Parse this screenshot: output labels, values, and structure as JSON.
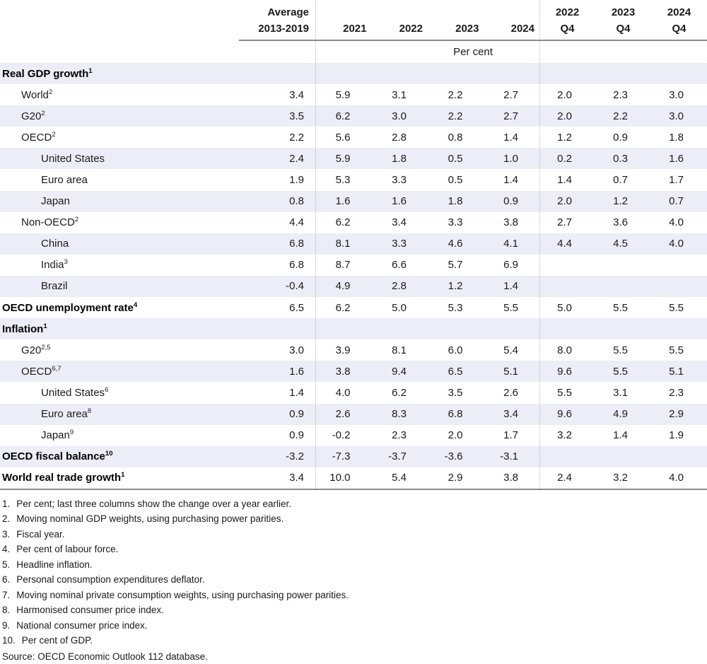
{
  "table": {
    "header": {
      "avg": {
        "line1": "Average",
        "line2": "2013-2019"
      },
      "years": [
        "2021",
        "2022",
        "2023",
        "2024"
      ],
      "quarters": [
        {
          "year": "2022",
          "q": "Q4"
        },
        {
          "year": "2023",
          "q": "Q4"
        },
        {
          "year": "2024",
          "q": "Q4"
        }
      ],
      "unit_label": "Per cent"
    },
    "rows": [
      {
        "label": "Real GDP growth",
        "marker": "1",
        "indent": 0,
        "values": [
          "",
          "",
          "",
          "",
          "",
          "",
          "",
          ""
        ]
      },
      {
        "label": "World",
        "marker": "2",
        "indent": 1,
        "values": [
          "3.4",
          "5.9",
          "3.1",
          "2.2",
          "2.7",
          "2.0",
          "2.3",
          "3.0"
        ]
      },
      {
        "label": "G20",
        "marker": "2",
        "indent": 1,
        "values": [
          "3.5",
          "6.2",
          "3.0",
          "2.2",
          "2.7",
          "2.0",
          "2.2",
          "3.0"
        ]
      },
      {
        "label": "OECD",
        "marker": "2",
        "indent": 1,
        "values": [
          "2.2",
          "5.6",
          "2.8",
          "0.8",
          "1.4",
          "1.2",
          "0.9",
          "1.8"
        ]
      },
      {
        "label": "United States",
        "marker": "",
        "indent": 2,
        "values": [
          "2.4",
          "5.9",
          "1.8",
          "0.5",
          "1.0",
          "0.2",
          "0.3",
          "1.6"
        ]
      },
      {
        "label": "Euro area",
        "marker": "",
        "indent": 2,
        "values": [
          "1.9",
          "5.3",
          "3.3",
          "0.5",
          "1.4",
          "1.4",
          "0.7",
          "1.7"
        ]
      },
      {
        "label": "Japan",
        "marker": "",
        "indent": 2,
        "values": [
          "0.8",
          "1.6",
          "1.6",
          "1.8",
          "0.9",
          "2.0",
          "1.2",
          "0.7"
        ]
      },
      {
        "label": "Non-OECD",
        "marker": "2",
        "indent": 1,
        "values": [
          "4.4",
          "6.2",
          "3.4",
          "3.3",
          "3.8",
          "2.7",
          "3.6",
          "4.0"
        ]
      },
      {
        "label": "China",
        "marker": "",
        "indent": 2,
        "values": [
          "6.8",
          "8.1",
          "3.3",
          "4.6",
          "4.1",
          "4.4",
          "4.5",
          "4.0"
        ]
      },
      {
        "label": "India",
        "marker": "3",
        "indent": 2,
        "values": [
          "6.8",
          "8.7",
          "6.6",
          "5.7",
          "6.9",
          "",
          "",
          ""
        ]
      },
      {
        "label": "Brazil",
        "marker": "",
        "indent": 2,
        "values": [
          "-0.4",
          "4.9",
          "2.8",
          "1.2",
          "1.4",
          "",
          "",
          ""
        ]
      },
      {
        "label": "OECD unemployment rate",
        "marker": "4",
        "indent": 0,
        "values": [
          "6.5",
          "6.2",
          "5.0",
          "5.3",
          "5.5",
          "5.0",
          "5.5",
          "5.5"
        ]
      },
      {
        "label": "Inflation",
        "marker": "1",
        "indent": 0,
        "values": [
          "",
          "",
          "",
          "",
          "",
          "",
          "",
          ""
        ]
      },
      {
        "label": "G20",
        "marker": "2,5",
        "indent": 1,
        "values": [
          "3.0",
          "3.9",
          "8.1",
          "6.0",
          "5.4",
          "8.0",
          "5.5",
          "5.5"
        ]
      },
      {
        "label": "OECD",
        "marker": "6,7",
        "indent": 1,
        "values": [
          "1.6",
          "3.8",
          "9.4",
          "6.5",
          "5.1",
          "9.6",
          "5.5",
          "5.1"
        ]
      },
      {
        "label": "United States",
        "marker": "6",
        "indent": 2,
        "values": [
          "1.4",
          "4.0",
          "6.2",
          "3.5",
          "2.6",
          "5.5",
          "3.1",
          "2.3"
        ]
      },
      {
        "label": "Euro area",
        "marker": "8",
        "indent": 2,
        "values": [
          "0.9",
          "2.6",
          "8.3",
          "6.8",
          "3.4",
          "9.6",
          "4.9",
          "2.9"
        ]
      },
      {
        "label": "Japan",
        "marker": "9",
        "indent": 2,
        "values": [
          "0.9",
          "-0.2",
          "2.3",
          "2.0",
          "1.7",
          "3.2",
          "1.4",
          "1.9"
        ]
      },
      {
        "label": "OECD fiscal balance",
        "marker": "10",
        "indent": 0,
        "values": [
          "-3.2",
          "-7.3",
          "-3.7",
          "-3.6",
          "-3.1",
          "",
          "",
          ""
        ]
      },
      {
        "label": "World real trade growth",
        "marker": "1",
        "indent": 0,
        "values": [
          "3.4",
          "10.0",
          "5.4",
          "2.9",
          "3.8",
          "2.4",
          "3.2",
          "4.0"
        ]
      }
    ]
  },
  "footnotes": [
    {
      "num": "1.",
      "text": "Per cent; last three columns show the change over a year earlier."
    },
    {
      "num": "2.",
      "text": "Moving nominal GDP weights, using purchasing power parities."
    },
    {
      "num": "3.",
      "text": "Fiscal year."
    },
    {
      "num": "4.",
      "text": "Per cent of labour force."
    },
    {
      "num": "5.",
      "text": "Headline inflation."
    },
    {
      "num": "6.",
      "text": "Personal consumption expenditures deflator."
    },
    {
      "num": "7.",
      "text": "Moving nominal private consumption weights, using purchasing power parities."
    },
    {
      "num": "8.",
      "text": "Harmonised consumer price index."
    },
    {
      "num": "9.",
      "text": "National consumer price index."
    },
    {
      "num": "10.",
      "text": "Per cent of GDP."
    }
  ],
  "source": "Source: OECD Economic Outlook 112 database.",
  "colors": {
    "row_shade": "#ededf8",
    "rule": "#8c8c8c",
    "divider": "#b4b4b4",
    "text": "#1a1a1a"
  }
}
